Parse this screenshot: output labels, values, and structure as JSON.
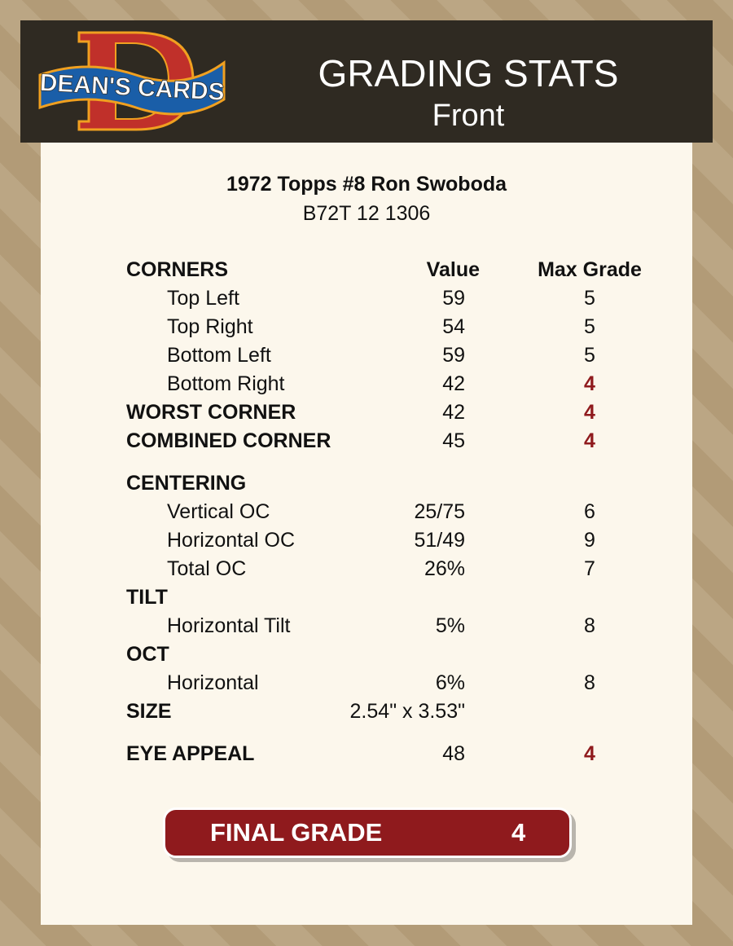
{
  "header": {
    "logo_text": "DEAN'S CARDS",
    "title": "GRADING STATS",
    "subtitle": "Front"
  },
  "card": {
    "title": "1972 Topps #8 Ron Swoboda",
    "id": "B72T 12 1306"
  },
  "columns": {
    "value": "Value",
    "max": "Max Grade"
  },
  "rows": [
    {
      "label": "CORNERS",
      "value": "",
      "max": "",
      "type": "head",
      "colhead": true
    },
    {
      "label": "Top Left",
      "value": "59",
      "max": "5",
      "type": "sub"
    },
    {
      "label": "Top Right",
      "value": "54",
      "max": "5",
      "type": "sub"
    },
    {
      "label": "Bottom Left",
      "value": "59",
      "max": "5",
      "type": "sub"
    },
    {
      "label": "Bottom Right",
      "value": "42",
      "max": "4",
      "type": "sub",
      "low": true
    },
    {
      "label": "WORST CORNER",
      "value": "42",
      "max": "4",
      "type": "head",
      "low": true
    },
    {
      "label": "COMBINED CORNER",
      "value": "45",
      "max": "4",
      "type": "head",
      "low": true
    },
    {
      "label": "CENTERING",
      "value": "",
      "max": "",
      "type": "head"
    },
    {
      "label": "Vertical OC",
      "value": "25/75",
      "max": "6",
      "type": "sub"
    },
    {
      "label": "Horizontal OC",
      "value": "51/49",
      "max": "9",
      "type": "sub"
    },
    {
      "label": "Total OC",
      "value": "26%",
      "max": "7",
      "type": "sub"
    },
    {
      "label": "TILT",
      "value": "",
      "max": "",
      "type": "head"
    },
    {
      "label": "Horizontal Tilt",
      "value": "5%",
      "max": "8",
      "type": "sub"
    },
    {
      "label": "OCT",
      "value": "",
      "max": "",
      "type": "head"
    },
    {
      "label": "Horizontal",
      "value": "6%",
      "max": "8",
      "type": "sub"
    },
    {
      "label": "SIZE",
      "value": "2.54\" x 3.53\"",
      "max": "",
      "type": "head"
    },
    {
      "label": "EYE APPEAL",
      "value": "48",
      "max": "4",
      "type": "head",
      "low": true
    }
  ],
  "final": {
    "label": "FINAL GRADE",
    "value": "4"
  },
  "colors": {
    "header_bg": "#2f2a22",
    "panel_bg": "#fcf7ec",
    "accent_red": "#8f1a1d"
  }
}
